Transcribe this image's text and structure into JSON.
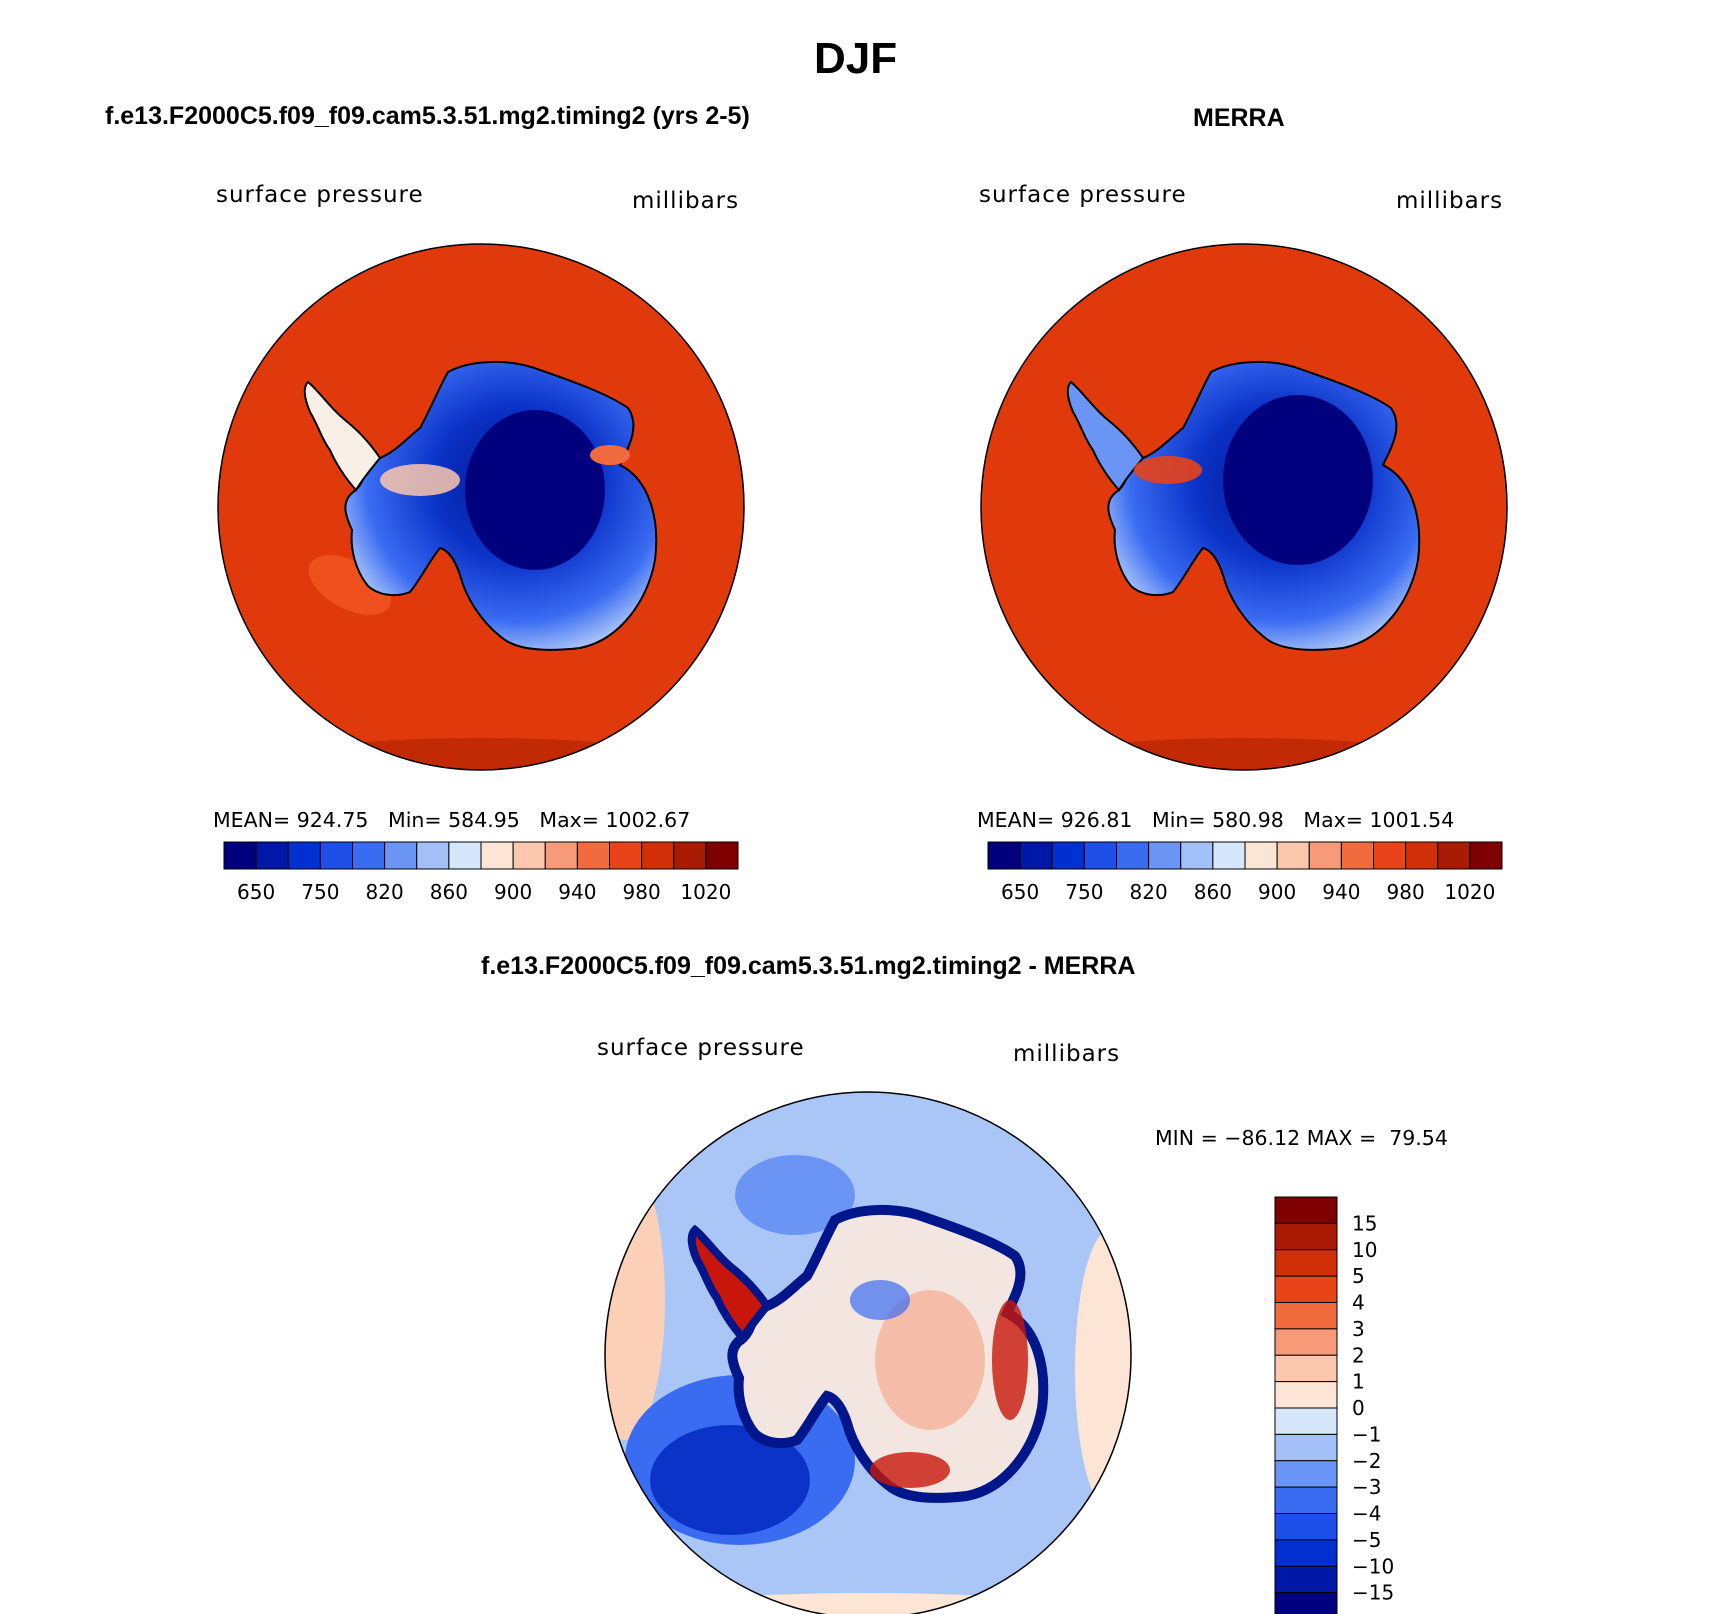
{
  "figure": {
    "season": "DJF",
    "panels": [
      {
        "id": "model",
        "title": "f.e13.F2000C5.f09_f09.cam5.3.51.mg2.timing2 (yrs 2-5)",
        "variable": "surface pressure",
        "units": "millibars",
        "stats": {
          "mean": "924.75",
          "min": "584.95",
          "max": "1002.67"
        }
      },
      {
        "id": "obs",
        "title": "MERRA",
        "variable": "surface pressure",
        "units": "millibars",
        "stats": {
          "mean": "926.81",
          "min": "580.98",
          "max": "1001.54"
        }
      },
      {
        "id": "diff",
        "title": "f.e13.F2000C5.f09_f09.cam5.3.51.mg2.timing2 - MERRA",
        "variable": "surface pressure",
        "units": "millibars",
        "stats": {
          "min": "−86.12",
          "max": "79.54"
        }
      }
    ],
    "colorbar_main": {
      "colors": [
        "#00007f",
        "#0018a8",
        "#0030d0",
        "#1e4fe8",
        "#3a6cf2",
        "#6b95f5",
        "#a3bff8",
        "#d6e6fb",
        "#fde5d5",
        "#fbc8ad",
        "#f69a78",
        "#f26b3f",
        "#e84319",
        "#d12f07",
        "#aa1b05",
        "#7f0000"
      ],
      "tick_labels": [
        "650",
        "750",
        "820",
        "860",
        "900",
        "940",
        "980",
        "1020"
      ]
    },
    "colorbar_diff": {
      "colors": [
        "#00007f",
        "#0018a8",
        "#0030d0",
        "#1e4fe8",
        "#3a6cf2",
        "#6b95f5",
        "#a3bff8",
        "#d6e6fb",
        "#fde5d5",
        "#fbc8ad",
        "#f69a78",
        "#f26b3f",
        "#e84319",
        "#d12f07",
        "#aa1b05",
        "#7f0000"
      ],
      "tick_labels": [
        "15",
        "10",
        "5",
        "4",
        "3",
        "2",
        "1",
        "0",
        "−1",
        "−2",
        "−3",
        "−4",
        "−5",
        "−10",
        "−15"
      ]
    },
    "map_colors": {
      "ocean_main": "#e03a0c",
      "ocean_edge": "#c22a05",
      "ice_deep": "#00168a",
      "ice_mid": "#0b33c8",
      "ice_light": "#3a6cf2",
      "ice_pale": "#a3bff8",
      "diff_ocean": "#a9c6f7",
      "diff_low": "#1e4fe8",
      "diff_pos": "#fbd0b6",
      "diff_hot": "#c8160a",
      "coast": "#000000"
    }
  },
  "labels": {
    "mean_prefix": "MEAN=",
    "min_prefix": "Min=",
    "max_prefix": "Max=",
    "diff_min_prefix": "MIN =",
    "diff_max_prefix": "MAX ="
  }
}
